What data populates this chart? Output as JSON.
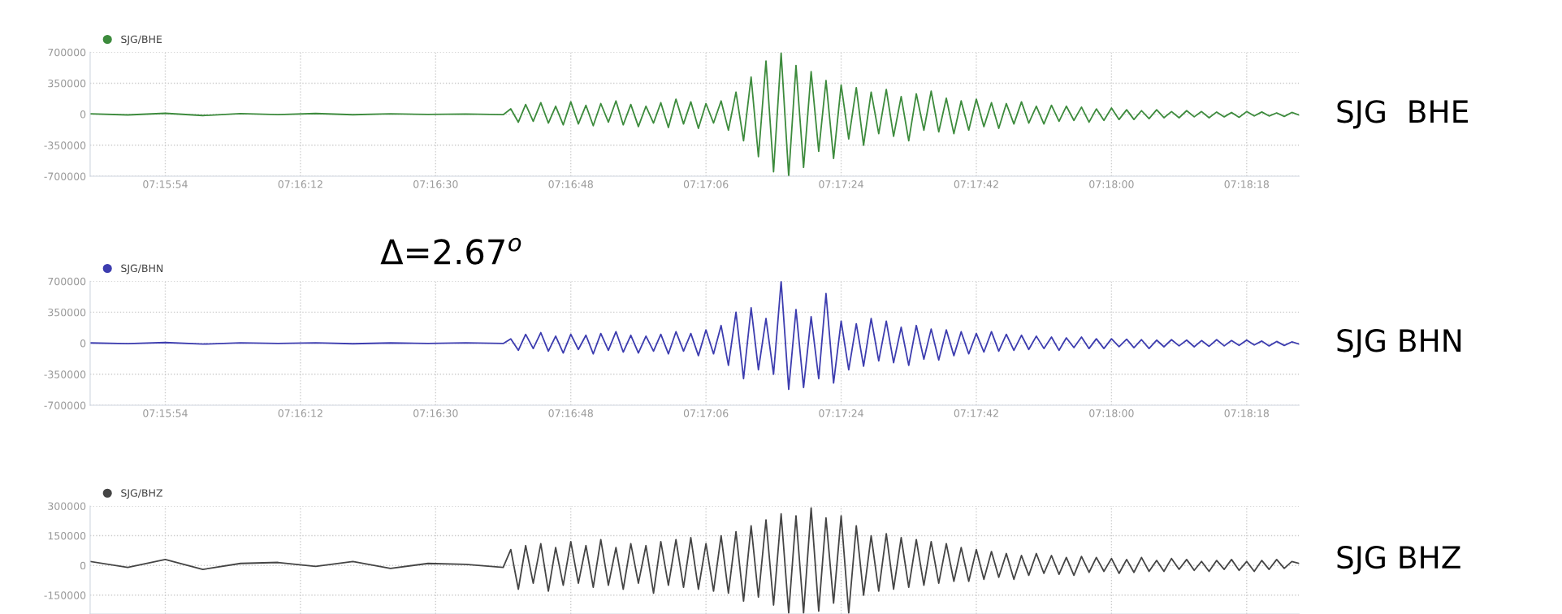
{
  "chart_data": [
    {
      "type": "line",
      "legend": "top left",
      "grid": true,
      "x": [
        7.26222,
        7.26361,
        7.265,
        7.26639,
        7.26778,
        7.26917,
        7.27056,
        7.27194,
        7.27333,
        7.27472,
        7.27611,
        7.2775,
        7.27778,
        7.27806,
        7.27833,
        7.27861,
        7.27889,
        7.27917,
        7.27944,
        7.27972,
        7.28,
        7.28028,
        7.28056,
        7.28083,
        7.28111,
        7.28139,
        7.28167,
        7.28194,
        7.28222,
        7.2825,
        7.28278,
        7.28306,
        7.28333,
        7.28361,
        7.28389,
        7.28417,
        7.28444,
        7.28472,
        7.285,
        7.28528,
        7.28556,
        7.28583,
        7.28611,
        7.28639,
        7.28667,
        7.28694,
        7.28722,
        7.2875,
        7.28778,
        7.28806,
        7.28833,
        7.28861,
        7.28889,
        7.28917,
        7.28944,
        7.28972,
        7.29,
        7.29028,
        7.29056,
        7.29083,
        7.29111,
        7.29139,
        7.29167,
        7.29194,
        7.29222,
        7.2925,
        7.29278,
        7.29306,
        7.29333,
        7.29361,
        7.29389,
        7.29417,
        7.29444,
        7.29472,
        7.295,
        7.29528,
        7.29556,
        7.29583,
        7.29611,
        7.29639,
        7.29667,
        7.29694,
        7.29722,
        7.2975,
        7.29778,
        7.29806,
        7.29833,
        7.29861,
        7.29889,
        7.29917,
        7.29944,
        7.29972,
        7.3,
        7.30028,
        7.30056,
        7.30083,
        7.30111,
        7.30139,
        7.30167,
        7.30194,
        7.30222,
        7.3025,
        7.30278,
        7.30306,
        7.30333,
        7.30361,
        7.30389,
        7.30417,
        7.30444,
        7.30472,
        7.305,
        7.30528,
        7.30556,
        7.30583,
        7.30611,
        7.30639,
        7.30667,
        7.30694
      ],
      "xlim": [
        7.26222,
        7.30694
      ],
      "xticks": [
        {
          "value": 7.265,
          "label": "07:15:54"
        },
        {
          "value": 7.27,
          "label": "07:16:12"
        },
        {
          "value": 7.275,
          "label": "07:16:30"
        },
        {
          "value": 7.28,
          "label": "07:16:48"
        },
        {
          "value": 7.285,
          "label": "07:17:06"
        },
        {
          "value": 7.29,
          "label": "07:17:24"
        },
        {
          "value": 7.295,
          "label": "07:17:42"
        },
        {
          "value": 7.3,
          "label": "07:18:00"
        },
        {
          "value": 7.305,
          "label": "07:18:18"
        }
      ],
      "ylim": [
        -700000,
        700000
      ],
      "yticks": [
        -700000,
        -350000,
        0,
        350000,
        700000
      ],
      "annotations": [
        "SJG  BHE"
      ],
      "series": [
        {
          "name": "SJG/BHE",
          "color": "#3d8b3d",
          "values": [
            5000,
            -8000,
            10000,
            -15000,
            6000,
            -5000,
            8000,
            -6000,
            4000,
            -3000,
            2000,
            -5000,
            60000,
            -90000,
            110000,
            -80000,
            130000,
            -100000,
            90000,
            -120000,
            140000,
            -110000,
            100000,
            -130000,
            120000,
            -90000,
            150000,
            -120000,
            110000,
            -140000,
            90000,
            -100000,
            130000,
            -150000,
            170000,
            -110000,
            140000,
            -160000,
            120000,
            -100000,
            150000,
            -180000,
            250000,
            -300000,
            420000,
            -480000,
            600000,
            -650000,
            690000,
            -700000,
            550000,
            -600000,
            480000,
            -420000,
            380000,
            -500000,
            330000,
            -280000,
            300000,
            -350000,
            250000,
            -220000,
            280000,
            -250000,
            200000,
            -300000,
            230000,
            -180000,
            260000,
            -200000,
            180000,
            -220000,
            150000,
            -180000,
            170000,
            -140000,
            130000,
            -160000,
            120000,
            -110000,
            140000,
            -100000,
            90000,
            -110000,
            100000,
            -80000,
            90000,
            -70000,
            80000,
            -90000,
            60000,
            -70000,
            70000,
            -60000,
            50000,
            -60000,
            40000,
            -50000,
            50000,
            -40000,
            30000,
            -40000,
            40000,
            -30000,
            30000,
            -40000,
            25000,
            -30000,
            20000,
            -35000,
            30000,
            -20000,
            25000,
            -20000,
            15000,
            -25000,
            20000,
            -10000
          ]
        }
      ]
    },
    {
      "type": "line",
      "legend": "top left",
      "grid": true,
      "x": [
        7.26222,
        7.26361,
        7.265,
        7.26639,
        7.26778,
        7.26917,
        7.27056,
        7.27194,
        7.27333,
        7.27472,
        7.27611,
        7.2775,
        7.27778,
        7.27806,
        7.27833,
        7.27861,
        7.27889,
        7.27917,
        7.27944,
        7.27972,
        7.28,
        7.28028,
        7.28056,
        7.28083,
        7.28111,
        7.28139,
        7.28167,
        7.28194,
        7.28222,
        7.2825,
        7.28278,
        7.28306,
        7.28333,
        7.28361,
        7.28389,
        7.28417,
        7.28444,
        7.28472,
        7.285,
        7.28528,
        7.28556,
        7.28583,
        7.28611,
        7.28639,
        7.28667,
        7.28694,
        7.28722,
        7.2875,
        7.28778,
        7.28806,
        7.28833,
        7.28861,
        7.28889,
        7.28917,
        7.28944,
        7.28972,
        7.29,
        7.29028,
        7.29056,
        7.29083,
        7.29111,
        7.29139,
        7.29167,
        7.29194,
        7.29222,
        7.2925,
        7.29278,
        7.29306,
        7.29333,
        7.29361,
        7.29389,
        7.29417,
        7.29444,
        7.29472,
        7.295,
        7.29528,
        7.29556,
        7.29583,
        7.29611,
        7.29639,
        7.29667,
        7.29694,
        7.29722,
        7.2975,
        7.29778,
        7.29806,
        7.29833,
        7.29861,
        7.29889,
        7.29917,
        7.29944,
        7.29972,
        7.3,
        7.30028,
        7.30056,
        7.30083,
        7.30111,
        7.30139,
        7.30167,
        7.30194,
        7.30222,
        7.3025,
        7.30278,
        7.30306,
        7.30333,
        7.30361,
        7.30389,
        7.30417,
        7.30444,
        7.30472,
        7.305,
        7.30528,
        7.30556,
        7.30583,
        7.30611,
        7.30639,
        7.30667,
        7.30694
      ],
      "xlim": [
        7.26222,
        7.30694
      ],
      "xticks": [
        {
          "value": 7.265,
          "label": "07:15:54"
        },
        {
          "value": 7.27,
          "label": "07:16:12"
        },
        {
          "value": 7.275,
          "label": "07:16:30"
        },
        {
          "value": 7.28,
          "label": "07:16:48"
        },
        {
          "value": 7.285,
          "label": "07:17:06"
        },
        {
          "value": 7.29,
          "label": "07:17:24"
        },
        {
          "value": 7.295,
          "label": "07:17:42"
        },
        {
          "value": 7.3,
          "label": "07:18:00"
        },
        {
          "value": 7.305,
          "label": "07:18:18"
        }
      ],
      "ylim": [
        -700000,
        700000
      ],
      "yticks": [
        -700000,
        -350000,
        0,
        350000,
        700000
      ],
      "annotations": [
        "SJG BHN",
        "Δ=2.67$^{o}$"
      ],
      "series": [
        {
          "name": "SJG/BHN",
          "color": "#3d3daf",
          "values": [
            3000,
            -5000,
            8000,
            -10000,
            4000,
            -3000,
            5000,
            -6000,
            3000,
            -2000,
            4000,
            -3000,
            50000,
            -80000,
            100000,
            -60000,
            120000,
            -90000,
            80000,
            -110000,
            100000,
            -70000,
            90000,
            -120000,
            110000,
            -80000,
            130000,
            -100000,
            90000,
            -110000,
            80000,
            -90000,
            100000,
            -120000,
            130000,
            -90000,
            110000,
            -140000,
            150000,
            -120000,
            200000,
            -250000,
            350000,
            -400000,
            400000,
            -300000,
            280000,
            -350000,
            700000,
            -520000,
            380000,
            -500000,
            300000,
            -400000,
            560000,
            -450000,
            250000,
            -300000,
            220000,
            -260000,
            280000,
            -200000,
            250000,
            -220000,
            180000,
            -250000,
            200000,
            -180000,
            160000,
            -190000,
            150000,
            -140000,
            130000,
            -120000,
            110000,
            -100000,
            130000,
            -90000,
            100000,
            -80000,
            90000,
            -70000,
            80000,
            -60000,
            70000,
            -80000,
            60000,
            -50000,
            70000,
            -60000,
            50000,
            -60000,
            50000,
            -40000,
            45000,
            -50000,
            40000,
            -60000,
            35000,
            -40000,
            40000,
            -30000,
            35000,
            -40000,
            30000,
            -35000,
            40000,
            -30000,
            30000,
            -25000,
            35000,
            -20000,
            25000,
            -30000,
            20000,
            -25000,
            15000,
            -10000
          ]
        }
      ]
    },
    {
      "type": "line",
      "legend": "top left",
      "grid": true,
      "tick_labels": "y",
      "x": [
        7.26222,
        7.26361,
        7.265,
        7.26639,
        7.26778,
        7.26917,
        7.27056,
        7.27194,
        7.27333,
        7.27472,
        7.27611,
        7.2775,
        7.27778,
        7.27806,
        7.27833,
        7.27861,
        7.27889,
        7.27917,
        7.27944,
        7.27972,
        7.28,
        7.28028,
        7.28056,
        7.28083,
        7.28111,
        7.28139,
        7.28167,
        7.28194,
        7.28222,
        7.2825,
        7.28278,
        7.28306,
        7.28333,
        7.28361,
        7.28389,
        7.28417,
        7.28444,
        7.28472,
        7.285,
        7.28528,
        7.28556,
        7.28583,
        7.28611,
        7.28639,
        7.28667,
        7.28694,
        7.28722,
        7.2875,
        7.28778,
        7.28806,
        7.28833,
        7.28861,
        7.28889,
        7.28917,
        7.28944,
        7.28972,
        7.29,
        7.29028,
        7.29056,
        7.29083,
        7.29111,
        7.29139,
        7.29167,
        7.29194,
        7.29222,
        7.2925,
        7.29278,
        7.29306,
        7.29333,
        7.29361,
        7.29389,
        7.29417,
        7.29444,
        7.29472,
        7.295,
        7.29528,
        7.29556,
        7.29583,
        7.29611,
        7.29639,
        7.29667,
        7.29694,
        7.29722,
        7.2975,
        7.29778,
        7.29806,
        7.29833,
        7.29861,
        7.29889,
        7.29917,
        7.29944,
        7.29972,
        7.3,
        7.30028,
        7.30056,
        7.30083,
        7.30111,
        7.30139,
        7.30167,
        7.30194,
        7.30222,
        7.3025,
        7.30278,
        7.30306,
        7.30333,
        7.30361,
        7.30389,
        7.30417,
        7.30444,
        7.30472,
        7.305,
        7.30528,
        7.30556,
        7.30583,
        7.30611,
        7.30639,
        7.30667,
        7.30694
      ],
      "xlim": [
        7.26222,
        7.30694
      ],
      "xticks": [
        7.265,
        7.27,
        7.275,
        7.28,
        7.285,
        7.29,
        7.295,
        7.3,
        7.305
      ],
      "ylim": [
        -245000,
        300000
      ],
      "yticks": [
        -150000,
        0,
        150000,
        300000
      ],
      "annotations": [
        "SJG BHZ"
      ],
      "series": [
        {
          "name": "SJG/BHZ",
          "color": "#454545",
          "values": [
            20000,
            -10000,
            30000,
            -20000,
            10000,
            15000,
            -5000,
            20000,
            -15000,
            10000,
            5000,
            -10000,
            80000,
            -120000,
            100000,
            -90000,
            110000,
            -130000,
            90000,
            -100000,
            120000,
            -90000,
            100000,
            -110000,
            130000,
            -100000,
            90000,
            -120000,
            110000,
            -90000,
            100000,
            -140000,
            120000,
            -100000,
            130000,
            -110000,
            140000,
            -120000,
            110000,
            -130000,
            150000,
            -140000,
            170000,
            -180000,
            200000,
            -160000,
            230000,
            -200000,
            260000,
            -240000,
            250000,
            -240000,
            290000,
            -230000,
            240000,
            -190000,
            250000,
            -240000,
            200000,
            -150000,
            150000,
            -130000,
            160000,
            -120000,
            140000,
            -110000,
            130000,
            -100000,
            120000,
            -90000,
            110000,
            -80000,
            90000,
            -80000,
            80000,
            -70000,
            70000,
            -60000,
            60000,
            -70000,
            50000,
            -50000,
            60000,
            -40000,
            50000,
            -45000,
            40000,
            -50000,
            45000,
            -35000,
            40000,
            -30000,
            35000,
            -40000,
            30000,
            -35000,
            40000,
            -30000,
            25000,
            -30000,
            35000,
            -20000,
            30000,
            -25000,
            20000,
            -30000,
            25000,
            -20000,
            30000,
            -25000,
            20000,
            -30000,
            25000,
            -20000,
            30000,
            -15000,
            20000,
            10000
          ]
        }
      ]
    }
  ]
}
